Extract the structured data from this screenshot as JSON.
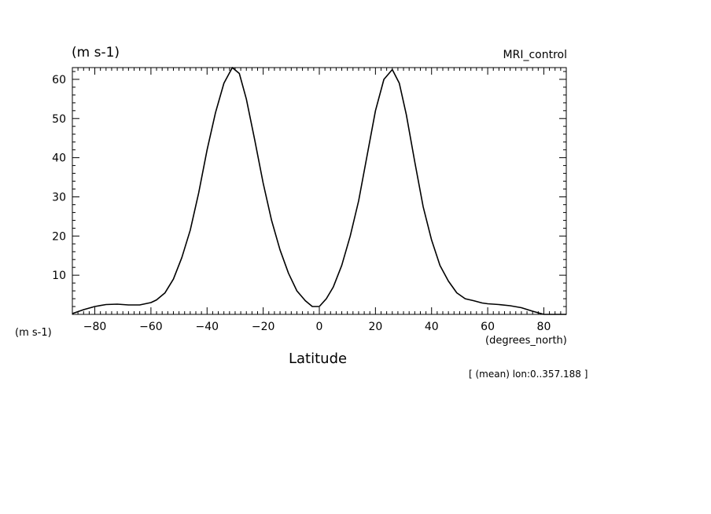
{
  "chart_data": {
    "type": "line",
    "title": "",
    "y_units_label": "(m s-1)",
    "y_units_label_left": "(m s-1)",
    "dataset_label": "MRI_control",
    "xlabel": "Latitude",
    "x_units_label": "(degrees_north)",
    "subset_label": "[ (mean) lon:0..357.188 ]",
    "xlim": [
      -88,
      88
    ],
    "ylim": [
      0,
      63
    ],
    "x_ticks": [
      -80,
      -60,
      -40,
      -20,
      0,
      20,
      40,
      60,
      80
    ],
    "x_tick_labels": [
      "-80",
      "-60",
      "-40",
      "-20",
      "0",
      "20",
      "40",
      "60",
      "80"
    ],
    "y_ticks": [
      10,
      20,
      30,
      40,
      50,
      60
    ],
    "y_tick_labels": [
      "10",
      "20",
      "30",
      "40",
      "50",
      "60"
    ],
    "grid": false,
    "series": [
      {
        "x": [
          -88,
          -84,
          -80,
          -76,
          -72,
          -68,
          -64,
          -60,
          -58,
          -55,
          -52,
          -49,
          -46,
          -43,
          -40,
          -37,
          -34,
          -31,
          -28.5,
          -26,
          -23,
          -20,
          -17,
          -14,
          -11,
          -8,
          -5,
          -2.5,
          0,
          2.5,
          5,
          8,
          11,
          14,
          17,
          20,
          23,
          26,
          28.5,
          31,
          34,
          37,
          40,
          43,
          46,
          49,
          52,
          55,
          58,
          60,
          64,
          68,
          72,
          76,
          80,
          84,
          88
        ],
        "y": [
          0.2,
          1.2,
          2.0,
          2.5,
          2.6,
          2.4,
          2.4,
          3.0,
          3.7,
          5.5,
          9.0,
          14.5,
          21.5,
          31.0,
          42.0,
          51.5,
          59.0,
          63.0,
          61.5,
          55.0,
          44.5,
          33.5,
          24.0,
          16.5,
          10.5,
          6.0,
          3.5,
          2.0,
          2.0,
          4.0,
          7.0,
          12.5,
          20.0,
          29.0,
          40.5,
          52.0,
          60.0,
          62.5,
          59.0,
          51.0,
          39.0,
          27.5,
          19.0,
          12.5,
          8.5,
          5.5,
          4.0,
          3.5,
          2.9,
          2.7,
          2.5,
          2.2,
          1.7,
          0.8,
          0.0,
          0.0,
          0.0
        ]
      }
    ]
  }
}
